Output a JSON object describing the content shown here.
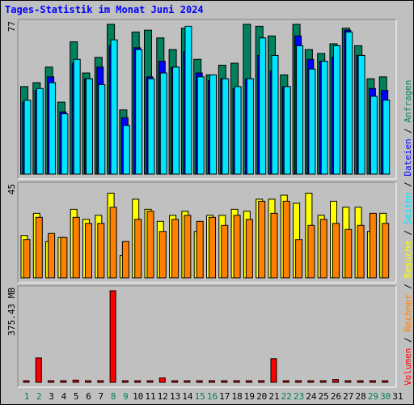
{
  "title": "Tages-Statistik im Monat Juni 2024",
  "colors": {
    "anfragen": "#00805c",
    "dateien": "#0000ff",
    "seiten": "#00e4ff",
    "besuche": "#ffff00",
    "rechner": "#ff8000",
    "volumen": "#ff0000",
    "weekend_label": "#00805c",
    "weekday_label": "#000000"
  },
  "side_legend": [
    {
      "text": "Volumen",
      "color": "#ff0000"
    },
    {
      "text": " / ",
      "color": "#000000"
    },
    {
      "text": "Rechner",
      "color": "#ff8000"
    },
    {
      "text": " / ",
      "color": "#000000"
    },
    {
      "text": "Besuche",
      "color": "#ffff00"
    },
    {
      "text": " / ",
      "color": "#000000"
    },
    {
      "text": "Seiten",
      "color": "#00e4ff"
    },
    {
      "text": " / ",
      "color": "#000000"
    },
    {
      "text": "Dateien",
      "color": "#0000ff"
    },
    {
      "text": " / ",
      "color": "#000000"
    },
    {
      "text": "Anfragen",
      "color": "#00805c"
    }
  ],
  "chart_data": [
    {
      "type": "bar",
      "name": "hits",
      "y_label": "77",
      "ylim": [
        0,
        77
      ],
      "categories": [
        "1",
        "2",
        "3",
        "4",
        "5",
        "6",
        "7",
        "8",
        "9",
        "10",
        "11",
        "12",
        "13",
        "14",
        "15",
        "16",
        "17",
        "18",
        "19",
        "20",
        "21",
        "22",
        "23",
        "24",
        "25",
        "26",
        "27",
        "28",
        "29",
        "30"
      ],
      "series": [
        {
          "name": "Anfragen",
          "values": [
            45,
            47,
            55,
            37,
            68,
            52,
            60,
            77,
            33,
            73,
            74,
            70,
            64,
            75,
            59,
            51,
            56,
            57,
            77,
            76,
            71,
            51,
            77,
            64,
            62,
            67,
            75,
            66,
            49,
            50
          ]
        },
        {
          "name": "Dateien",
          "values": [
            37,
            43,
            50,
            32,
            57,
            49,
            55,
            66,
            29,
            65,
            50,
            58,
            55,
            63,
            52,
            48,
            49,
            44,
            49,
            61,
            53,
            45,
            71,
            59,
            58,
            60,
            74,
            61,
            44,
            43
          ]
        },
        {
          "name": "Seiten",
          "values": [
            38,
            44,
            47,
            31,
            59,
            49,
            46,
            69,
            25,
            64,
            49,
            52,
            55,
            76,
            50,
            51,
            49,
            45,
            49,
            70,
            61,
            45,
            66,
            54,
            58,
            66,
            73,
            61,
            40,
            38
          ]
        }
      ]
    },
    {
      "type": "bar",
      "name": "visits",
      "y_label": "45",
      "ylim": [
        0,
        45
      ],
      "categories": [
        "1",
        "2",
        "3",
        "4",
        "5",
        "6",
        "7",
        "8",
        "9",
        "10",
        "11",
        "12",
        "13",
        "14",
        "15",
        "16",
        "17",
        "18",
        "19",
        "20",
        "21",
        "22",
        "23",
        "24",
        "25",
        "26",
        "27",
        "28",
        "29",
        "30"
      ],
      "series": [
        {
          "name": "Besuche",
          "values": [
            21,
            32,
            18,
            20,
            34,
            29,
            31,
            42,
            11,
            39,
            34,
            28,
            31,
            33,
            23,
            31,
            31,
            34,
            33,
            39,
            39,
            41,
            37,
            42,
            31,
            38,
            35,
            35,
            23,
            32
          ]
        },
        {
          "name": "Rechner",
          "values": [
            19,
            30,
            22,
            20,
            30,
            27,
            27,
            35,
            18,
            29,
            33,
            23,
            29,
            31,
            28,
            30,
            26,
            31,
            29,
            38,
            32,
            38,
            19,
            26,
            29,
            27,
            24,
            26,
            32,
            27
          ]
        }
      ]
    },
    {
      "type": "bar",
      "name": "volume",
      "y_label": "375.43 MB",
      "ylim": [
        0,
        375.43
      ],
      "categories": [
        "1",
        "2",
        "3",
        "4",
        "5",
        "6",
        "7",
        "8",
        "9",
        "10",
        "11",
        "12",
        "13",
        "14",
        "15",
        "16",
        "17",
        "18",
        "19",
        "20",
        "21",
        "22",
        "23",
        "24",
        "25",
        "26",
        "27",
        "28",
        "29",
        "30"
      ],
      "series": [
        {
          "name": "Volumen",
          "values": [
            4,
            100,
            4,
            4,
            9,
            4,
            4,
            375.43,
            4,
            4,
            4,
            18,
            4,
            4,
            4,
            4,
            4,
            4,
            4,
            4,
            97,
            4,
            4,
            4,
            4,
            11,
            4,
            4,
            4,
            4
          ]
        }
      ]
    }
  ],
  "x_labels": [
    {
      "text": "1",
      "weekend": true
    },
    {
      "text": "2",
      "weekend": true
    },
    {
      "text": "3",
      "weekend": false
    },
    {
      "text": "4",
      "weekend": false
    },
    {
      "text": "5",
      "weekend": false
    },
    {
      "text": "6",
      "weekend": false
    },
    {
      "text": "7",
      "weekend": false
    },
    {
      "text": "8",
      "weekend": true
    },
    {
      "text": "9",
      "weekend": true
    },
    {
      "text": "10",
      "weekend": false
    },
    {
      "text": "11",
      "weekend": false
    },
    {
      "text": "12",
      "weekend": false
    },
    {
      "text": "13",
      "weekend": false
    },
    {
      "text": "14",
      "weekend": false
    },
    {
      "text": "15",
      "weekend": true
    },
    {
      "text": "16",
      "weekend": true
    },
    {
      "text": "17",
      "weekend": false
    },
    {
      "text": "18",
      "weekend": false
    },
    {
      "text": "19",
      "weekend": false
    },
    {
      "text": "20",
      "weekend": false
    },
    {
      "text": "21",
      "weekend": false
    },
    {
      "text": "22",
      "weekend": true
    },
    {
      "text": "23",
      "weekend": true
    },
    {
      "text": "24",
      "weekend": false
    },
    {
      "text": "25",
      "weekend": false
    },
    {
      "text": "26",
      "weekend": false
    },
    {
      "text": "27",
      "weekend": false
    },
    {
      "text": "28",
      "weekend": false
    },
    {
      "text": "29",
      "weekend": true
    },
    {
      "text": "30",
      "weekend": true
    },
    {
      "text": "31",
      "weekend": false
    }
  ]
}
